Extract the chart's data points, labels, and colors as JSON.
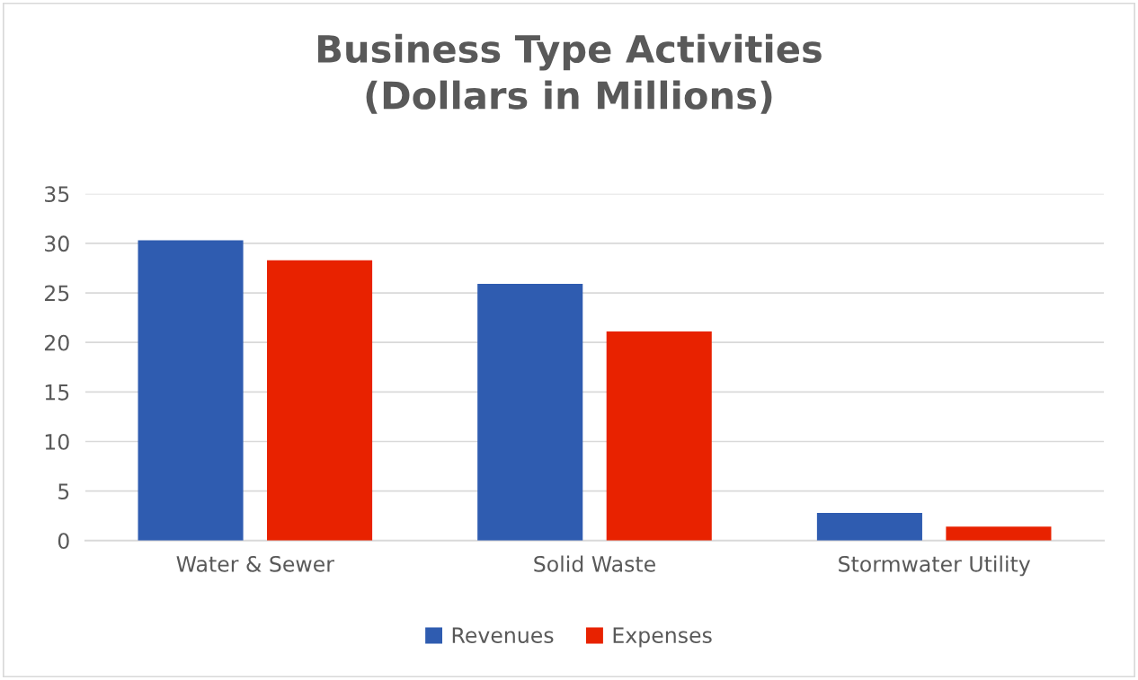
{
  "chart_data": {
    "type": "bar",
    "title": "Business Type Activities\n(Dollars in Millions)",
    "categories": [
      "Water & Sewer",
      "Solid Waste",
      "Stormwater Utility"
    ],
    "series": [
      {
        "name": "Revenues",
        "color": "#2f5cb0",
        "values": [
          30.3,
          25.9,
          2.8
        ]
      },
      {
        "name": "Expenses",
        "color": "#e82200",
        "values": [
          28.3,
          21.1,
          1.4
        ]
      }
    ],
    "ylim": [
      0,
      35
    ],
    "yticks": [
      0,
      5,
      10,
      15,
      20,
      25,
      30,
      35
    ],
    "grid": "y",
    "legend": "bottom"
  }
}
